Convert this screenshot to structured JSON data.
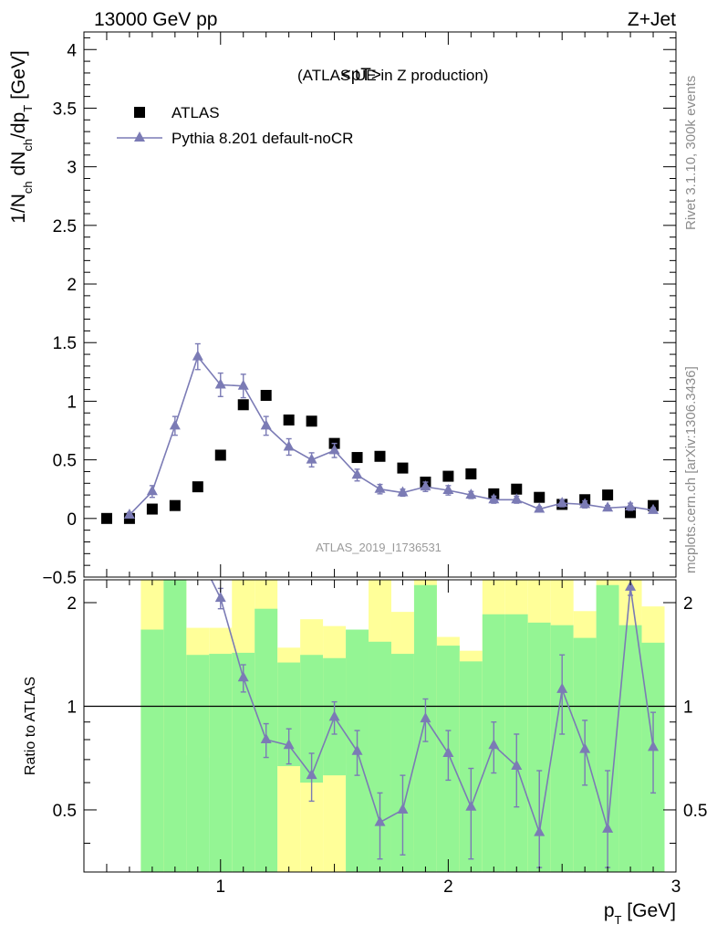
{
  "header": {
    "energy_label": "13000 GeV pp",
    "process_label": "Z+Jet"
  },
  "side_labels": {
    "rivet": "Rivet 3.1.10,  300k events",
    "mcplots": "mcplots.cern.ch [arXiv:1306.3436]"
  },
  "colors": {
    "model": "#7b7bb5",
    "band_inner": "#94f594",
    "band_outer": "#ffff99",
    "data": "#000000"
  },
  "chart_data": [
    {
      "type": "scatter",
      "title_main": "<pT>",
      "title_sub": "(ATLAS UE in Z production)",
      "ylabel": "1/N_ch dN_ch/dp_T [GeV]",
      "analysis_tag": "ATLAS_2019_I1736531",
      "legend_placement": "top-left",
      "xlim": [
        0.4,
        3.0
      ],
      "ylim": [
        -0.5,
        4.15
      ],
      "x_ticks": [
        1,
        2,
        3
      ],
      "y_ticks": [
        -0.5,
        0,
        0.5,
        1,
        1.5,
        2,
        2.5,
        3,
        3.5,
        4
      ],
      "y_tick_labels": [
        "−0.5",
        "0",
        "0.5",
        "1",
        "1.5",
        "2",
        "2.5",
        "3",
        "3.5",
        "4"
      ],
      "series": [
        {
          "name": "ATLAS",
          "marker": "square",
          "x": [
            0.5,
            0.6,
            0.7,
            0.8,
            0.9,
            1.0,
            1.1,
            1.2,
            1.3,
            1.4,
            1.5,
            1.6,
            1.7,
            1.8,
            1.9,
            2.0,
            2.1,
            2.2,
            2.3,
            2.4,
            2.5,
            2.6,
            2.7,
            2.8,
            2.9
          ],
          "y": [
            0.0,
            0.0,
            0.08,
            0.11,
            0.27,
            0.54,
            0.97,
            1.05,
            0.84,
            0.83,
            0.64,
            0.52,
            0.53,
            0.43,
            0.31,
            0.36,
            0.38,
            0.21,
            0.25,
            0.18,
            0.12,
            0.16,
            0.2,
            0.05,
            0.11
          ]
        },
        {
          "name": "Pythia 8.201 default-noCR",
          "marker": "triangle",
          "x": [
            0.6,
            0.7,
            0.8,
            0.9,
            1.0,
            1.1,
            1.2,
            1.3,
            1.4,
            1.5,
            1.6,
            1.7,
            1.8,
            1.9,
            2.0,
            2.1,
            2.2,
            2.3,
            2.4,
            2.5,
            2.6,
            2.7,
            2.8,
            2.9
          ],
          "y": [
            0.03,
            0.23,
            0.79,
            1.38,
            1.14,
            1.13,
            0.79,
            0.61,
            0.5,
            0.58,
            0.37,
            0.25,
            0.22,
            0.27,
            0.24,
            0.2,
            0.16,
            0.16,
            0.08,
            0.13,
            0.12,
            0.09,
            0.1,
            0.07
          ],
          "yerr": [
            0.02,
            0.05,
            0.08,
            0.11,
            0.1,
            0.1,
            0.08,
            0.07,
            0.06,
            0.06,
            0.05,
            0.04,
            0.03,
            0.04,
            0.04,
            0.03,
            0.03,
            0.03,
            0.02,
            0.03,
            0.03,
            0.02,
            0.03,
            0.02
          ]
        }
      ]
    },
    {
      "type": "scatter",
      "ylabel": "Ratio to ATLAS",
      "xlabel": "p_T [GeV]",
      "xlim": [
        0.4,
        3.0
      ],
      "ylim": [
        0.33,
        2.33
      ],
      "x_ticks": [
        1,
        2,
        3
      ],
      "y_ticks": [
        0.5,
        1,
        2
      ],
      "reference_line": 1,
      "bands": {
        "x_edges": [
          0.65,
          0.75,
          0.85,
          0.95,
          1.05,
          1.15,
          1.25,
          1.35,
          1.45,
          1.55,
          1.65,
          1.75,
          1.85,
          1.95,
          2.05,
          2.15,
          2.25,
          2.35,
          2.45,
          2.55,
          2.65,
          2.75,
          2.85,
          2.95
        ],
        "inner_lo": [
          0.33,
          0.33,
          0.33,
          0.33,
          0.33,
          0.33,
          0.67,
          0.6,
          0.63,
          0.33,
          0.33,
          0.33,
          0.33,
          0.33,
          0.33,
          0.33,
          0.33,
          0.33,
          0.33,
          0.33,
          0.33,
          0.33,
          0.33
        ],
        "inner_hi": [
          1.67,
          2.33,
          1.41,
          1.42,
          1.43,
          1.92,
          1.34,
          1.41,
          1.38,
          1.67,
          1.54,
          1.42,
          2.25,
          1.5,
          1.35,
          1.85,
          1.85,
          1.75,
          1.72,
          1.58,
          2.25,
          1.72,
          1.53
        ],
        "outer_lo": [
          0.33,
          0.33,
          0.72,
          0.71,
          0.33,
          0.33,
          0.33,
          0.33,
          0.33,
          0.68,
          0.33,
          0.33,
          0.38,
          0.33,
          0.33,
          0.33,
          0.33,
          0.33,
          0.33,
          0.33,
          0.33,
          0.33,
          0.54
        ],
        "outer_hi": [
          2.33,
          2.33,
          1.69,
          1.69,
          2.33,
          2.33,
          1.48,
          1.79,
          1.71,
          1.44,
          2.33,
          1.88,
          2.33,
          1.59,
          1.45,
          2.33,
          2.33,
          2.33,
          2.33,
          1.89,
          2.33,
          2.33,
          1.95
        ]
      },
      "series": [
        {
          "name": "Pythia 8.201 default-noCR",
          "x": [
            1.0,
            1.1,
            1.2,
            1.3,
            1.4,
            1.5,
            1.6,
            1.7,
            1.8,
            1.9,
            2.0,
            2.1,
            2.2,
            2.3,
            2.4,
            2.5,
            2.6,
            2.7,
            2.8,
            2.9
          ],
          "y": [
            2.06,
            1.21,
            0.8,
            0.77,
            0.63,
            0.93,
            0.74,
            0.46,
            0.5,
            0.92,
            0.73,
            0.51,
            0.77,
            0.67,
            0.43,
            1.12,
            0.75,
            0.44,
            2.22,
            0.76
          ],
          "yerr": [
            0.14,
            0.11,
            0.09,
            0.09,
            0.1,
            0.1,
            0.11,
            0.1,
            0.13,
            0.13,
            0.12,
            0.15,
            0.13,
            0.16,
            0.22,
            0.29,
            0.16,
            0.21,
            0.12,
            0.2
          ],
          "entry_line_from_y": 2.33,
          "entry_line_from_x": 0.96
        }
      ]
    }
  ]
}
